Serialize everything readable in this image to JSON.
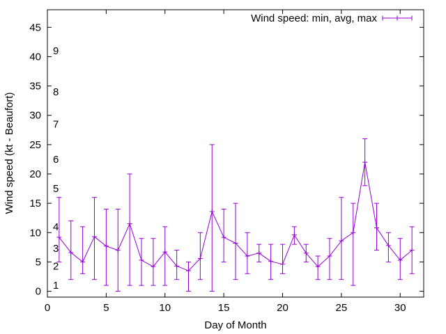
{
  "chart_data": {
    "type": "line",
    "xlabel": "Day of Month",
    "ylabel": "Wind speed (kt - Beaufort)",
    "xlim": [
      0,
      32
    ],
    "ylim": [
      -1,
      48
    ],
    "xticks": [
      0,
      5,
      10,
      15,
      20,
      25,
      30
    ],
    "yticks": [
      0,
      5,
      10,
      15,
      20,
      25,
      30,
      35,
      40,
      45
    ],
    "grid": false,
    "legend_position": "top-right",
    "colors": {
      "series": "#9400d3",
      "axes": "#000000"
    },
    "beaufort_scale": [
      {
        "label": "1",
        "value": 1
      },
      {
        "label": "2",
        "value": 4.3
      },
      {
        "label": "3",
        "value": 7.3
      },
      {
        "label": "4",
        "value": 11
      },
      {
        "label": "5",
        "value": 17.5
      },
      {
        "label": "6",
        "value": 22.5
      },
      {
        "label": "7",
        "value": 28.5
      },
      {
        "label": "8",
        "value": 34
      },
      {
        "label": "9",
        "value": 41
      }
    ],
    "series": [
      {
        "name": "Wind speed: min, avg, max",
        "x": [
          1,
          2,
          3,
          4,
          5,
          6,
          7,
          8,
          9,
          10,
          11,
          12,
          13,
          14,
          15,
          16,
          17,
          18,
          19,
          20,
          21,
          22,
          23,
          24,
          25,
          26,
          27,
          28,
          29,
          30,
          31
        ],
        "avg": [
          9.2,
          6.6,
          5.0,
          9.3,
          7.7,
          7.0,
          11.5,
          5.3,
          4.2,
          6.7,
          4.3,
          3.5,
          5.6,
          13.6,
          9.2,
          8.2,
          6.0,
          6.5,
          5.1,
          4.6,
          9.6,
          6.5,
          4.2,
          6.0,
          8.6,
          10.0,
          22.0,
          10.8,
          7.8,
          5.3,
          7.0
        ],
        "min": [
          5,
          2,
          3,
          2,
          1,
          0,
          1,
          1,
          1,
          1,
          2,
          0,
          2,
          0,
          5,
          2,
          3,
          5,
          2,
          3,
          8,
          5,
          2,
          2,
          2,
          1,
          18,
          7,
          5,
          2,
          3
        ],
        "max": [
          16,
          12,
          11,
          16,
          14,
          14,
          20,
          9,
          9,
          11,
          7,
          5,
          10,
          25,
          14,
          15,
          10,
          8,
          8,
          8,
          11,
          8,
          6,
          9,
          16,
          15,
          26,
          15,
          10,
          9,
          11
        ]
      }
    ]
  }
}
